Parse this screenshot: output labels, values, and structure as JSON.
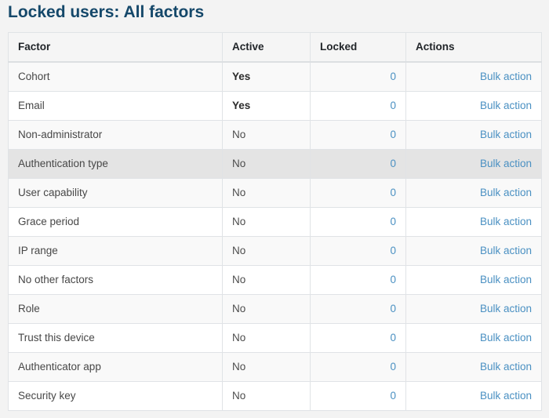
{
  "page": {
    "title": "Locked users: All factors"
  },
  "table": {
    "columns": [
      {
        "label": "Factor"
      },
      {
        "label": "Active"
      },
      {
        "label": "Locked"
      },
      {
        "label": "Actions"
      }
    ],
    "bulk_action_label": "Bulk action",
    "rows": [
      {
        "factor": "Cohort",
        "active": "Yes",
        "locked": "0",
        "highlighted": false
      },
      {
        "factor": "Email",
        "active": "Yes",
        "locked": "0",
        "highlighted": false
      },
      {
        "factor": "Non-administrator",
        "active": "No",
        "locked": "0",
        "highlighted": false
      },
      {
        "factor": "Authentication type",
        "active": "No",
        "locked": "0",
        "highlighted": true
      },
      {
        "factor": "User capability",
        "active": "No",
        "locked": "0",
        "highlighted": false
      },
      {
        "factor": "Grace period",
        "active": "No",
        "locked": "0",
        "highlighted": false
      },
      {
        "factor": "IP range",
        "active": "No",
        "locked": "0",
        "highlighted": false
      },
      {
        "factor": "No other factors",
        "active": "No",
        "locked": "0",
        "highlighted": false
      },
      {
        "factor": "Role",
        "active": "No",
        "locked": "0",
        "highlighted": false
      },
      {
        "factor": "Trust this device",
        "active": "No",
        "locked": "0",
        "highlighted": false
      },
      {
        "factor": "Authenticator app",
        "active": "No",
        "locked": "0",
        "highlighted": false
      },
      {
        "factor": "Security key",
        "active": "No",
        "locked": "0",
        "highlighted": false
      }
    ]
  },
  "colors": {
    "title": "#15486a",
    "link": "#4a90c2",
    "page_background": "#f3f3f3",
    "header_background": "#f5f5f5",
    "stripe_row_background": "#f9f9f9",
    "highlight_row_background": "#e4e4e4",
    "border": "#e0e3e6"
  }
}
